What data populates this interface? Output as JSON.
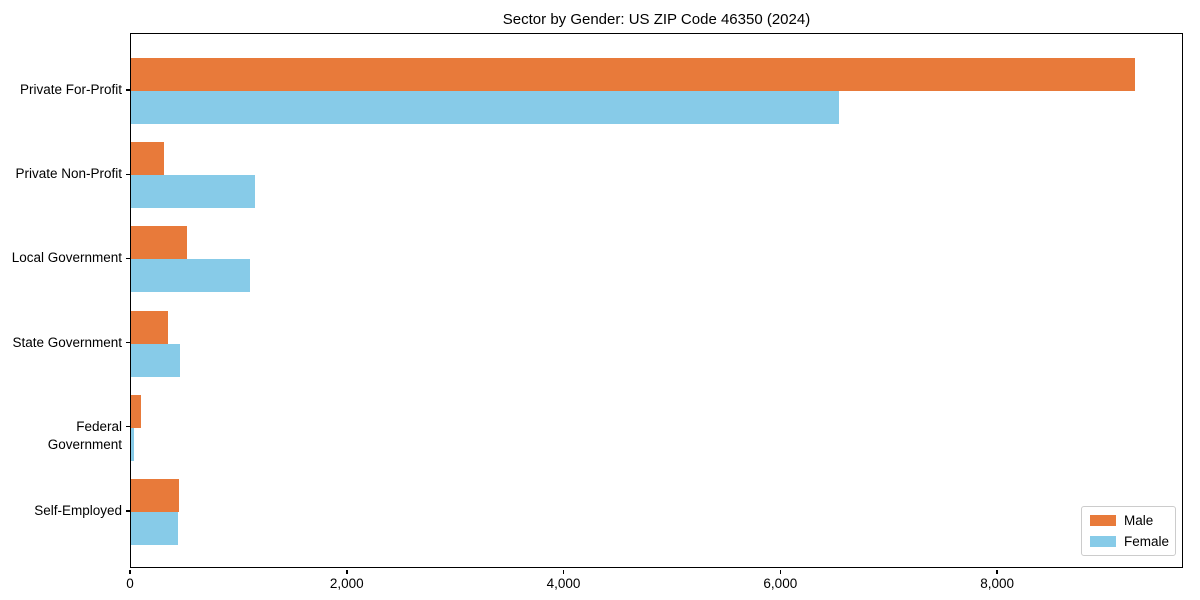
{
  "chart_data": {
    "type": "bar",
    "orientation": "horizontal",
    "title": "Sector by Gender: US ZIP Code 46350 (2024)",
    "categories": [
      "Private For-Profit",
      "Private Non-Profit",
      "Local Government",
      "State Government",
      "Federal Government",
      "Self-Employed"
    ],
    "series": [
      {
        "name": "Male",
        "color": "#e87a3a",
        "values": [
          9280,
          305,
          520,
          340,
          90,
          440
        ]
      },
      {
        "name": "Female",
        "color": "#87cbe8",
        "values": [
          6540,
          1150,
          1100,
          450,
          25,
          430
        ]
      }
    ],
    "xlabel": "",
    "ylabel": "",
    "xlim": [
      0,
      9715
    ],
    "x_ticks": [
      {
        "value": 0,
        "label": "0"
      },
      {
        "value": 2000,
        "label": "2,000"
      },
      {
        "value": 4000,
        "label": "4,000"
      },
      {
        "value": 6000,
        "label": "6,000"
      },
      {
        "value": 8000,
        "label": "8,000"
      }
    ],
    "grid": false,
    "legend": {
      "position": "lower right",
      "entries": [
        "Male",
        "Female"
      ]
    }
  }
}
